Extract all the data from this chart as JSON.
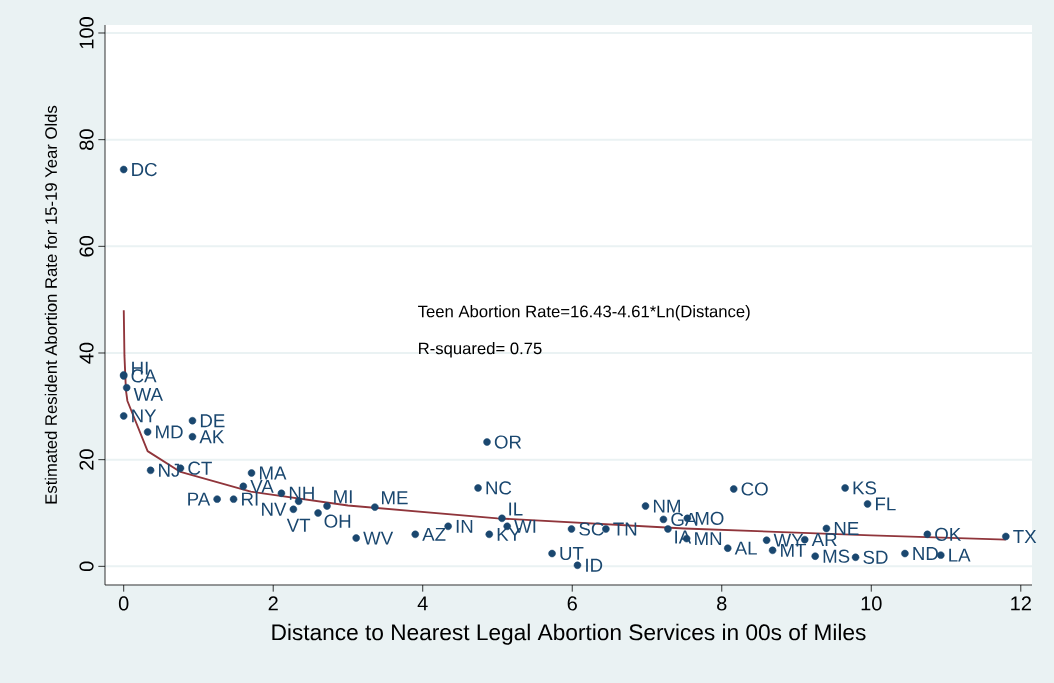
{
  "chart_data": {
    "type": "scatter",
    "xlabel": "Distance to Nearest Legal Abortion Services in 00s of Miles",
    "ylabel": "Estimated Resident Abortion Rate for 15-19 Year Olds",
    "xlim": [
      -0.25,
      12.15
    ],
    "ylim": [
      -3.5,
      101.5
    ],
    "xticks": [
      0,
      2,
      4,
      6,
      8,
      10,
      12
    ],
    "yticks": [
      0,
      20,
      40,
      60,
      80,
      100
    ],
    "grid": "y",
    "series": [
      {
        "marker": "circle",
        "color": "#1a476f",
        "x": [
          0,
          0,
          0,
          0.04,
          0,
          0.32,
          0.92,
          0.92,
          0.36,
          0.76,
          1.71,
          1.6,
          2.11,
          1.25,
          1.47,
          2.34,
          2.27,
          2.6,
          2.72,
          3.36,
          3.11,
          3.9,
          4.86,
          4.74,
          4.34,
          5.06,
          5.13,
          4.89,
          5.99,
          6.45,
          5.73,
          6.07,
          6.98,
          7.22,
          7.54,
          7.28,
          7.53,
          8.08,
          8.16,
          9.65,
          9.95,
          9.4,
          8.6,
          9.11,
          8.68,
          9.25,
          9.79,
          10.45,
          10.93,
          10.75,
          11.8
        ],
        "values": [
          74.4,
          35.9,
          35.7,
          33.5,
          28.2,
          25.2,
          27.3,
          24.3,
          18.0,
          18.4,
          17.5,
          15.0,
          13.7,
          12.6,
          12.6,
          12.2,
          10.7,
          10.0,
          11.3,
          11.1,
          5.3,
          6.0,
          23.3,
          14.7,
          7.5,
          9.0,
          7.5,
          6.0,
          7.0,
          7.0,
          2.4,
          0.2,
          11.3,
          8.8,
          9.0,
          7.0,
          5.2,
          3.4,
          14.5,
          14.7,
          11.7,
          7.1,
          4.9,
          5.0,
          3.0,
          1.9,
          1.7,
          2.4,
          2.1,
          6.0,
          5.6
        ]
      },
      {
        "type": "line",
        "color": "#90353b",
        "x": [
          0.001,
          0.01,
          0.03,
          0.05,
          0.32,
          0.76,
          1.7,
          3.0,
          5.0,
          7.5,
          10.0,
          11.8
        ],
        "values": [
          48.0,
          39.5,
          33.0,
          31.0,
          21.6,
          17.7,
          14.0,
          11.4,
          9.0,
          7.1,
          5.8,
          5.0
        ]
      }
    ],
    "annotations": [
      "Teen Abortion Rate=16.43-4.61*Ln(Distance)",
      "R-squared= 0.75",
      {
        "text": "DC",
        "x": 0,
        "y": 74.4
      },
      {
        "text": "HI",
        "x": 0,
        "y": 35.9
      },
      {
        "text": "CA",
        "x": 0,
        "y": 35.7
      },
      {
        "text": "WA",
        "x": 0.04,
        "y": 33.5
      },
      {
        "text": "NY",
        "x": 0,
        "y": 28.2
      },
      {
        "text": "MD",
        "x": 0.32,
        "y": 25.2
      },
      {
        "text": "DE",
        "x": 0.92,
        "y": 27.3
      },
      {
        "text": "AK",
        "x": 0.92,
        "y": 24.3
      },
      {
        "text": "NJ",
        "x": 0.36,
        "y": 18.0
      },
      {
        "text": "CT",
        "x": 0.76,
        "y": 18.4
      },
      {
        "text": "MA",
        "x": 1.71,
        "y": 17.5
      },
      {
        "text": "VA",
        "x": 1.6,
        "y": 15.0
      },
      {
        "text": "NH",
        "x": 2.11,
        "y": 13.7
      },
      {
        "text": "PA",
        "x": 1.25,
        "y": 12.6
      },
      {
        "text": "RI",
        "x": 1.47,
        "y": 12.6
      },
      {
        "text": "VT",
        "x": 2.34,
        "y": 12.2
      },
      {
        "text": "NV",
        "x": 2.27,
        "y": 10.7
      },
      {
        "text": "OH",
        "x": 2.6,
        "y": 10.0
      },
      {
        "text": "MI",
        "x": 2.72,
        "y": 11.3
      },
      {
        "text": "ME",
        "x": 3.36,
        "y": 11.1
      },
      {
        "text": "WV",
        "x": 3.11,
        "y": 5.3
      },
      {
        "text": "AZ",
        "x": 3.9,
        "y": 6.0
      },
      {
        "text": "OR",
        "x": 4.86,
        "y": 23.3
      },
      {
        "text": "NC",
        "x": 4.74,
        "y": 14.7
      },
      {
        "text": "IN",
        "x": 4.34,
        "y": 7.5
      },
      {
        "text": "IL",
        "x": 5.06,
        "y": 9.0
      },
      {
        "text": "WI",
        "x": 5.13,
        "y": 7.5
      },
      {
        "text": "KY",
        "x": 4.89,
        "y": 6.0
      },
      {
        "text": "SC",
        "x": 5.99,
        "y": 7.0
      },
      {
        "text": "TN",
        "x": 6.45,
        "y": 7.0
      },
      {
        "text": "UT",
        "x": 5.73,
        "y": 2.4
      },
      {
        "text": "ID",
        "x": 6.07,
        "y": 0.2
      },
      {
        "text": "NM",
        "x": 6.98,
        "y": 11.3
      },
      {
        "text": "GA",
        "x": 7.22,
        "y": 8.8
      },
      {
        "text": "MO",
        "x": 7.54,
        "y": 9.0
      },
      {
        "text": "IA",
        "x": 7.28,
        "y": 7.0
      },
      {
        "text": "MN",
        "x": 7.53,
        "y": 5.2
      },
      {
        "text": "AL",
        "x": 8.08,
        "y": 3.4
      },
      {
        "text": "CO",
        "x": 8.16,
        "y": 14.5
      },
      {
        "text": "KS",
        "x": 9.65,
        "y": 14.7
      },
      {
        "text": "FL",
        "x": 9.95,
        "y": 11.7
      },
      {
        "text": "NE",
        "x": 9.4,
        "y": 7.1
      },
      {
        "text": "WY",
        "x": 8.6,
        "y": 4.9
      },
      {
        "text": "AR",
        "x": 9.11,
        "y": 5.0
      },
      {
        "text": "MT",
        "x": 8.68,
        "y": 3.0
      },
      {
        "text": "MS",
        "x": 9.25,
        "y": 1.9
      },
      {
        "text": "SD",
        "x": 9.79,
        "y": 1.7
      },
      {
        "text": "ND",
        "x": 10.45,
        "y": 2.4
      },
      {
        "text": "LA",
        "x": 10.93,
        "y": 2.1
      },
      {
        "text": "OK",
        "x": 10.75,
        "y": 6.0
      },
      {
        "text": "TX",
        "x": 11.8,
        "y": 5.6
      }
    ]
  }
}
